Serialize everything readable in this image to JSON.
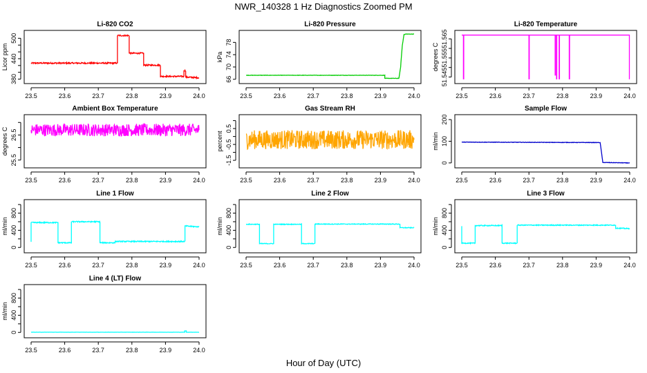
{
  "title": "NWR_140328  1 Hz Diagnostics Zoomed PM",
  "xlabel": "Hour of Day (UTC)",
  "chart_data": [
    {
      "type": "line",
      "title": "Li-820 CO2",
      "ylabel": "Licor ppm",
      "color": "#ff0000",
      "xlim": [
        23.5,
        24.0
      ],
      "ylim": [
        375,
        515
      ],
      "xticks": [
        "23.5",
        "23.6",
        "23.7",
        "23.8",
        "23.9",
        "24.0"
      ],
      "yticks": [
        380,
        440,
        500
      ],
      "ytick_labels": [
        "380",
        "440",
        "500"
      ],
      "extra_yticks": [
        400,
        420,
        460,
        480
      ],
      "x": [
        23.5,
        23.757,
        23.757,
        23.792,
        23.792,
        23.835,
        23.835,
        23.885,
        23.885,
        23.955,
        23.955,
        23.96,
        23.96,
        24.0
      ],
      "y": [
        427,
        427,
        508,
        508,
        456,
        456,
        421,
        421,
        388,
        388,
        405,
        405,
        386,
        384
      ],
      "noise": 2
    },
    {
      "type": "line",
      "title": "Li-820 Pressure",
      "ylabel": "kPa",
      "color": "#00cc00",
      "xlim": [
        23.5,
        24.0
      ],
      "ylim": [
        65.5,
        81
      ],
      "xticks": [
        "23.5",
        "23.6",
        "23.7",
        "23.8",
        "23.9",
        "24.0"
      ],
      "yticks": [
        66,
        70,
        74,
        78
      ],
      "ytick_labels": [
        "66",
        "70",
        "74",
        "78"
      ],
      "x": [
        23.5,
        23.913,
        23.913,
        23.955,
        23.96,
        23.965,
        23.97,
        23.975,
        24.0
      ],
      "y": [
        67.3,
        67.3,
        66.3,
        66.3,
        70,
        77,
        80.5,
        80.7,
        80.7
      ],
      "noise": 0.05
    },
    {
      "type": "line",
      "title": "Li-820 Temperature",
      "ylabel": "degrees C",
      "color": "#ff00ff",
      "xlim": [
        23.5,
        24.0
      ],
      "ylim": [
        51.543,
        51.568
      ],
      "xticks": [
        "23.5",
        "23.6",
        "23.7",
        "23.8",
        "23.9",
        "24.0"
      ],
      "yticks": [
        51.545,
        51.55,
        51.555,
        51.56,
        51.565
      ],
      "ytick_labels": [
        "51.545",
        "",
        "51.555",
        "",
        "51.565"
      ],
      "x": [
        23.5,
        23.505,
        23.505,
        23.506,
        23.506,
        23.7,
        23.7,
        23.701,
        23.701,
        23.778,
        23.778,
        23.779,
        23.779,
        23.782,
        23.782,
        23.783,
        23.783,
        23.79,
        23.79,
        23.791,
        23.791,
        23.82,
        23.82,
        23.821,
        23.821,
        23.999,
        23.999,
        24.0
      ],
      "y": [
        51.567,
        51.567,
        51.544,
        51.544,
        51.567,
        51.567,
        51.544,
        51.544,
        51.567,
        51.567,
        51.546,
        51.546,
        51.567,
        51.567,
        51.544,
        51.544,
        51.567,
        51.567,
        51.544,
        51.544,
        51.567,
        51.567,
        51.544,
        51.544,
        51.567,
        51.567,
        51.544,
        51.544
      ],
      "noise": 0
    },
    {
      "type": "line",
      "title": "Ambient Box Temperature",
      "ylabel": "degrees C",
      "color": "#ff00ff",
      "xlim": [
        23.5,
        24.0
      ],
      "ylim": [
        25.3,
        27.2
      ],
      "xticks": [
        "23.5",
        "23.6",
        "23.7",
        "23.8",
        "23.9",
        "24.0"
      ],
      "yticks": [
        25.5,
        26.0,
        26.5,
        27.0
      ],
      "ytick_labels": [
        "25.5",
        "",
        "26.5",
        ""
      ],
      "x": [
        23.5,
        24.0
      ],
      "y": [
        26.7,
        26.7
      ],
      "noise": 0.25
    },
    {
      "type": "line",
      "title": "Gas Stream RH",
      "ylabel": "percent",
      "color": "#ffa500",
      "xlim": [
        23.5,
        24.0
      ],
      "ylim": [
        -1.8,
        1.2
      ],
      "xticks": [
        "23.5",
        "23.6",
        "23.7",
        "23.8",
        "23.9",
        "24.0"
      ],
      "yticks": [
        -1.5,
        -1.0,
        -0.5,
        0.0,
        0.5,
        1.0
      ],
      "ytick_labels": [
        "-1.5",
        "",
        "-0.5",
        "",
        "0.5",
        ""
      ],
      "x": [
        23.5,
        24.0
      ],
      "y": [
        -0.2,
        -0.2
      ],
      "noise": 0.6
    },
    {
      "type": "line",
      "title": "Sample Flow",
      "ylabel": "ml/min",
      "color": "#0000cc",
      "xlim": [
        23.5,
        24.0
      ],
      "ylim": [
        -10,
        210
      ],
      "xticks": [
        "23.5",
        "23.6",
        "23.7",
        "23.8",
        "23.9",
        "24.0"
      ],
      "yticks": [
        0,
        100,
        200
      ],
      "ytick_labels": [
        "0",
        "100",
        "200"
      ],
      "x": [
        23.5,
        23.912,
        23.92,
        24.0
      ],
      "y": [
        96,
        94,
        2,
        0
      ],
      "noise": 1
    },
    {
      "type": "line",
      "title": "Line 1 Flow",
      "ylabel": "ml/min",
      "color": "#00ffff",
      "xlim": [
        23.5,
        24.0
      ],
      "ylim": [
        -60,
        1050
      ],
      "xticks": [
        "23.5",
        "23.6",
        "23.7",
        "23.8",
        "23.9",
        "24.0"
      ],
      "yticks": [
        0,
        200,
        400,
        600,
        800,
        1000
      ],
      "ytick_labels": [
        "0",
        "",
        "400",
        "",
        "800",
        ""
      ],
      "x": [
        23.5,
        23.5,
        23.58,
        23.58,
        23.62,
        23.62,
        23.705,
        23.705,
        23.75,
        23.75,
        23.958,
        23.958,
        24.0
      ],
      "y": [
        120,
        580,
        580,
        110,
        110,
        600,
        600,
        110,
        110,
        140,
        140,
        500,
        480
      ],
      "noise": 12
    },
    {
      "type": "line",
      "title": "Line 2 Flow",
      "ylabel": "ml/min",
      "color": "#00ffff",
      "xlim": [
        23.5,
        24.0
      ],
      "ylim": [
        -60,
        1050
      ],
      "xticks": [
        "23.5",
        "23.6",
        "23.7",
        "23.8",
        "23.9",
        "24.0"
      ],
      "yticks": [
        0,
        200,
        400,
        600,
        800,
        1000
      ],
      "ytick_labels": [
        "0",
        "",
        "400",
        "",
        "800",
        ""
      ],
      "x": [
        23.5,
        23.54,
        23.54,
        23.582,
        23.582,
        23.665,
        23.665,
        23.705,
        23.705,
        23.958,
        23.958,
        24.0
      ],
      "y": [
        540,
        540,
        90,
        90,
        540,
        540,
        90,
        90,
        545,
        545,
        460,
        460
      ],
      "noise": 8
    },
    {
      "type": "line",
      "title": "Line 3 Flow",
      "ylabel": "ml/min",
      "color": "#00ffff",
      "xlim": [
        23.5,
        24.0
      ],
      "ylim": [
        -60,
        1050
      ],
      "xticks": [
        "23.5",
        "23.6",
        "23.7",
        "23.8",
        "23.9",
        "24.0"
      ],
      "yticks": [
        0,
        200,
        400,
        600,
        800,
        1000
      ],
      "ytick_labels": [
        "0",
        "",
        "400",
        "",
        "800",
        ""
      ],
      "x": [
        23.5,
        23.5,
        23.54,
        23.54,
        23.62,
        23.62,
        23.665,
        23.665,
        23.958,
        23.958,
        24.0
      ],
      "y": [
        490,
        100,
        100,
        510,
        510,
        100,
        100,
        520,
        520,
        450,
        440
      ],
      "noise": 10
    },
    {
      "type": "line",
      "title": "Line 4 (LT) Flow",
      "ylabel": "ml/min",
      "color": "#00ffff",
      "xlim": [
        23.5,
        24.0
      ],
      "ylim": [
        -60,
        1050
      ],
      "xticks": [
        "23.5",
        "23.6",
        "23.7",
        "23.8",
        "23.9",
        "24.0"
      ],
      "yticks": [
        0,
        200,
        400,
        600,
        800,
        1000
      ],
      "ytick_labels": [
        "0",
        "",
        "400",
        "",
        "800",
        ""
      ],
      "x": [
        23.5,
        23.957,
        23.957,
        23.962,
        23.962,
        24.0
      ],
      "y": [
        5,
        5,
        35,
        35,
        5,
        5
      ],
      "noise": 2
    }
  ]
}
